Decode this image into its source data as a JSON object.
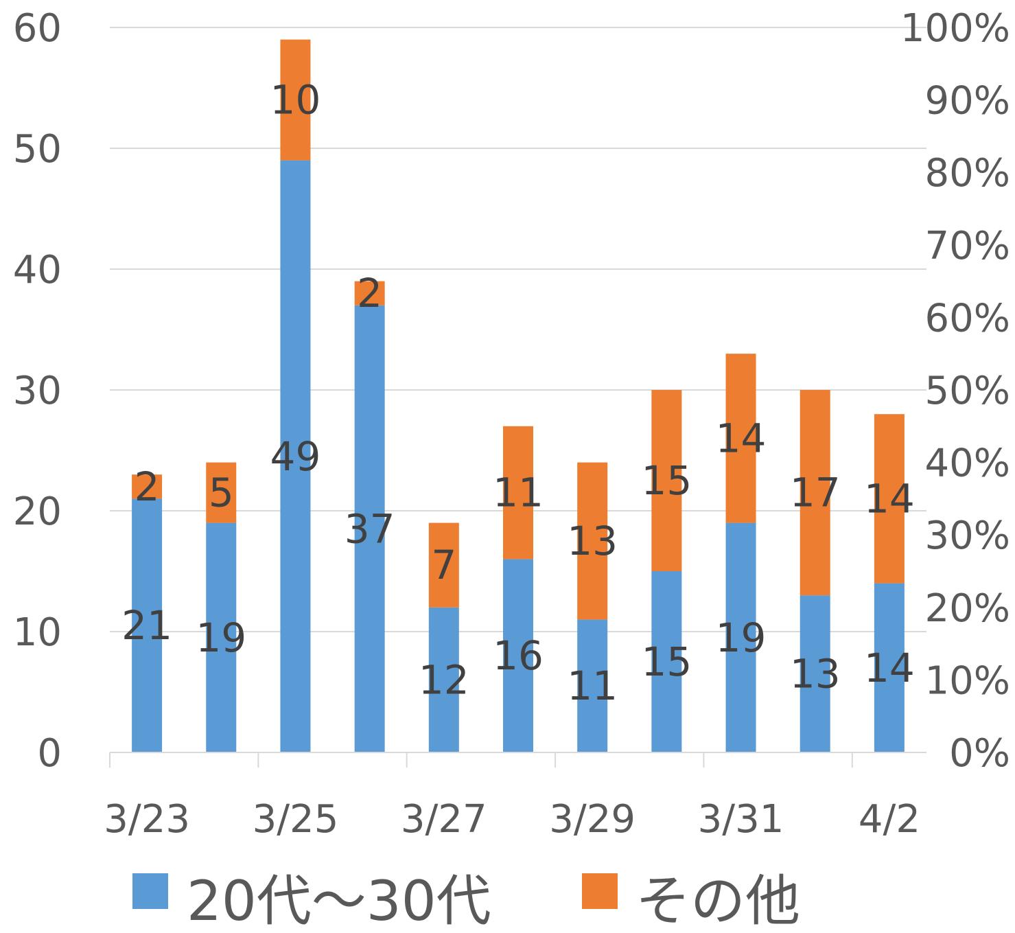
{
  "chart_data": {
    "type": "bar",
    "stacked": true,
    "categories": [
      "3/23",
      "3/24",
      "3/25",
      "3/26",
      "3/27",
      "3/28",
      "3/29",
      "3/30",
      "3/31",
      "4/1",
      "4/2"
    ],
    "category_tick_labels": [
      "3/23",
      "3/25",
      "3/27",
      "3/29",
      "3/31",
      "4/2"
    ],
    "series": [
      {
        "name": "20代～30代",
        "values": [
          21,
          19,
          49,
          37,
          12,
          16,
          11,
          15,
          19,
          13,
          14
        ],
        "color": "#5B9BD5"
      },
      {
        "name": "その他",
        "values": [
          2,
          5,
          10,
          2,
          7,
          11,
          13,
          15,
          14,
          17,
          14
        ],
        "color": "#ED7D31"
      }
    ],
    "y_left": {
      "min": 0,
      "max": 60,
      "step": 10,
      "ticks": [
        "0",
        "10",
        "20",
        "30",
        "40",
        "50",
        "60"
      ]
    },
    "y_right": {
      "min": 0,
      "max": 100,
      "step": 10,
      "ticks": [
        "0%",
        "10%",
        "20%",
        "30%",
        "40%",
        "50%",
        "60%",
        "70%",
        "80%",
        "90%",
        "100%"
      ]
    },
    "grid": true,
    "legend_position": "bottom",
    "data_labels": true
  }
}
